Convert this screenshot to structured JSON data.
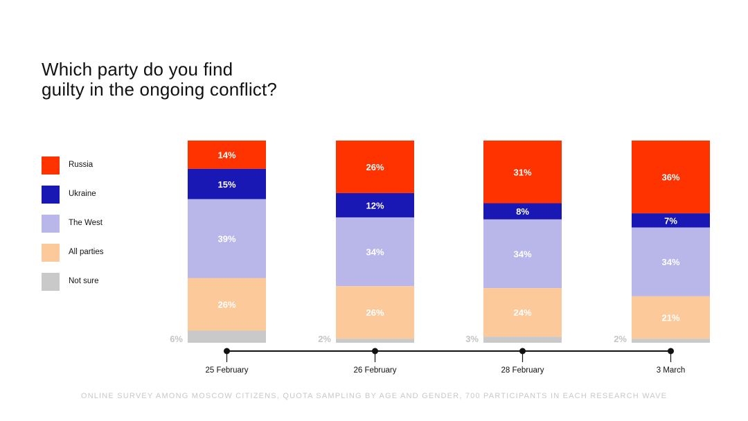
{
  "title_lines": [
    "Which party do you find",
    "guilty in the ongoing conflict?"
  ],
  "legend": [
    {
      "label": "Russia",
      "color": "#ff3300"
    },
    {
      "label": "Ukraine",
      "color": "#1a18b4"
    },
    {
      "label": "The West",
      "color": "#b9b7ea"
    },
    {
      "label": "All parties",
      "color": "#fcc99b"
    },
    {
      "label": "Not sure",
      "color": "#c9c9c9"
    }
  ],
  "footnote": "ONLINE SURVEY AMONG MOSCOW CITIZENS, QUOTA SAMPLING BY AGE AND GENDER, 700 PARTICIPANTS IN EACH RESEARCH WAVE",
  "chart_data": {
    "type": "bar",
    "stacked": true,
    "categories": [
      "25 February",
      "26 February",
      "28 February",
      "3 March"
    ],
    "series": [
      {
        "name": "Russia",
        "color": "#ff3300",
        "values": [
          14,
          26,
          31,
          36
        ],
        "labels": [
          "14%",
          "26%",
          "31%",
          "36%"
        ]
      },
      {
        "name": "Ukraine",
        "color": "#1a18b4",
        "values": [
          15,
          12,
          8,
          7
        ],
        "labels": [
          "15%",
          "12%",
          "8%",
          "7%"
        ]
      },
      {
        "name": "The West",
        "color": "#b9b7ea",
        "values": [
          39,
          34,
          34,
          34
        ],
        "labels": [
          "39%",
          "34%",
          "34%",
          "34%"
        ]
      },
      {
        "name": "All parties",
        "color": "#fcc99b",
        "values": [
          26,
          26,
          24,
          21
        ],
        "labels": [
          "26%",
          "26%",
          "24%",
          "21%"
        ]
      },
      {
        "name": "Not sure",
        "color": "#c9c9c9",
        "values": [
          6,
          2,
          3,
          2
        ],
        "labels": [
          "6%",
          "2%",
          "3%",
          "2%"
        ]
      }
    ],
    "legend_position": "left",
    "grid": false
  }
}
